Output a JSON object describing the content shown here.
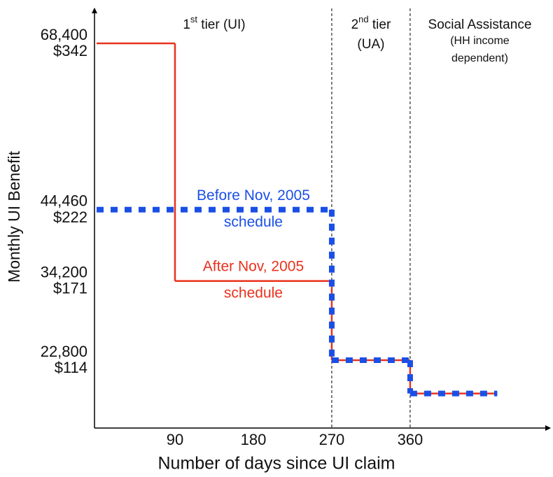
{
  "chart_data": {
    "type": "step",
    "x_label": "Number of days since UI claim",
    "y_label": "Monthly UI Benefit",
    "xlim": [
      0,
      520
    ],
    "xticks": [
      90,
      180,
      270,
      360
    ],
    "ylim": [
      13000,
      73100
    ],
    "yticks": [
      {
        "value": 22800,
        "label": "22,800"
      },
      {
        "value": 34200,
        "label": "34,200"
      },
      {
        "value": 44460,
        "label": "44,460"
      },
      {
        "value": 68400,
        "label": "68,400"
      }
    ],
    "y2lim": [
      65,
      365.5
    ],
    "y2ticks": [
      {
        "value": 114,
        "label": "$114"
      },
      {
        "value": 171,
        "label": "$171"
      },
      {
        "value": 222,
        "label": "$222"
      },
      {
        "value": 342,
        "label": "$342"
      }
    ],
    "dividers": [
      270,
      360
    ],
    "regions": [
      {
        "from": 0,
        "to": 270,
        "lines": [
          "1st tier (UI)"
        ]
      },
      {
        "from": 270,
        "to": 360,
        "lines": [
          "2nd tier",
          "(UA)"
        ]
      },
      {
        "from": 360,
        "to": 520,
        "lines": [
          "Social Assistance",
          "(HH income",
          "dependent)"
        ]
      }
    ],
    "series": [
      {
        "name": "After Nov, 2005 schedule",
        "color": "#e8321e",
        "x": [
          0,
          90,
          270,
          360,
          460
        ],
        "values": [
          68400,
          34200,
          22800,
          18000,
          18000
        ]
      },
      {
        "name": "Before Nov, 2005 schedule",
        "color": "#1a4fe6",
        "x": [
          0,
          270,
          360,
          460
        ],
        "values": [
          44460,
          22800,
          18000,
          18000
        ]
      }
    ]
  }
}
